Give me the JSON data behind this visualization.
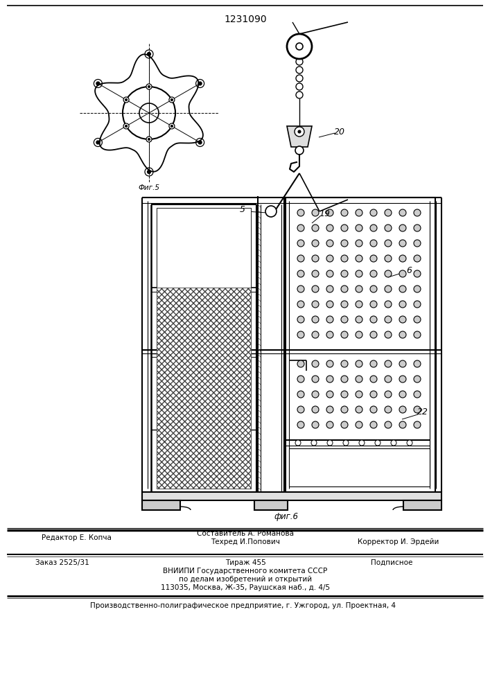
{
  "patent_number": "1231090",
  "fig5_label": "Фиг.5",
  "fig6_label": "фиг.6",
  "background_color": "#ffffff",
  "footer": {
    "editor": "Редактор Е. Копча",
    "composer": "Составитель А. Романова",
    "techred": "Техред И.Попович",
    "corrector": "Корректор И. Эрдейи",
    "order": "Заказ 2525/31",
    "circulation": "Тираж 455",
    "subscription": "Подписное",
    "vniipи": "ВНИИПИ Государственного комитета СССР",
    "affairs": "по делам изобретений и открытий",
    "address": "113035, Москва, Ж-35, Раушская наб., д. 4/5",
    "production": "Производственно-полиграфическое предприятие, г. Ужгород, ул. Проектная, 4"
  }
}
